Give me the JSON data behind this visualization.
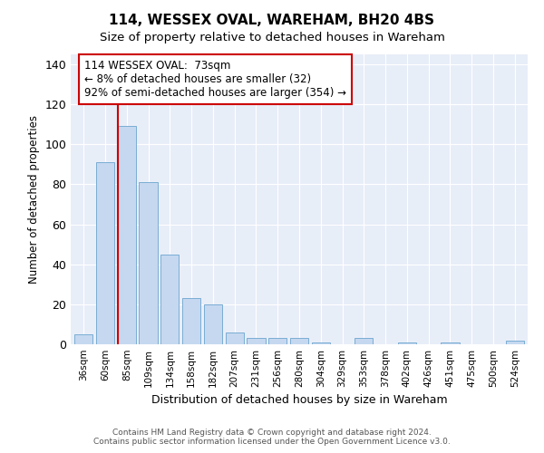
{
  "title": "114, WESSEX OVAL, WAREHAM, BH20 4BS",
  "subtitle": "Size of property relative to detached houses in Wareham",
  "xlabel": "Distribution of detached houses by size in Wareham",
  "ylabel": "Number of detached properties",
  "bar_color": "#c5d8f0",
  "bar_edge_color": "#7aadd4",
  "background_color": "#e8eef8",
  "grid_color": "#ffffff",
  "categories": [
    "36sqm",
    "60sqm",
    "85sqm",
    "109sqm",
    "134sqm",
    "158sqm",
    "182sqm",
    "207sqm",
    "231sqm",
    "256sqm",
    "280sqm",
    "304sqm",
    "329sqm",
    "353sqm",
    "378sqm",
    "402sqm",
    "426sqm",
    "451sqm",
    "475sqm",
    "500sqm",
    "524sqm"
  ],
  "values": [
    5,
    91,
    109,
    81,
    45,
    23,
    20,
    6,
    3,
    3,
    3,
    1,
    0,
    3,
    0,
    1,
    0,
    1,
    0,
    0,
    2
  ],
  "ylim": [
    0,
    145
  ],
  "yticks": [
    0,
    20,
    40,
    60,
    80,
    100,
    120,
    140
  ],
  "vline_x": 1.575,
  "vline_color": "#cc0000",
  "annotation_text": "114 WESSEX OVAL:  73sqm\n← 8% of detached houses are smaller (32)\n92% of semi-detached houses are larger (354) →",
  "annotation_box_color": "#cc0000",
  "title_fontsize": 11,
  "subtitle_fontsize": 9.5,
  "footer_line1": "Contains HM Land Registry data © Crown copyright and database right 2024.",
  "footer_line2": "Contains public sector information licensed under the Open Government Licence v3.0."
}
